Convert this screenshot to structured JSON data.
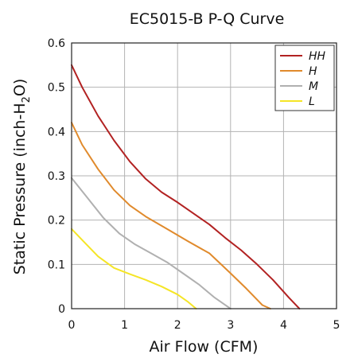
{
  "chart_data": {
    "type": "line",
    "title": "EC5015-B P-Q Curve",
    "xlabel": "Air Flow (CFM)",
    "ylabel": "Static Pressure (inch-H2O)",
    "ylabel_main": "Static Pressure (inch-H",
    "ylabel_sub": "2",
    "ylabel_end": "O)",
    "xlim": [
      0,
      5
    ],
    "ylim": [
      0,
      0.6
    ],
    "xticks": [
      0,
      1,
      2,
      3,
      4,
      5
    ],
    "yticks": [
      0,
      0.1,
      0.2,
      0.3,
      0.4,
      0.5,
      0.6
    ],
    "grid": true,
    "legend_position": "top-right",
    "series": [
      {
        "name": "HH",
        "color": "#b22222",
        "x": [
          0,
          0.2,
          0.5,
          0.8,
          1.1,
          1.4,
          1.7,
          2.0,
          2.3,
          2.6,
          2.9,
          3.2,
          3.5,
          3.8,
          4.1,
          4.3
        ],
        "y": [
          0.55,
          0.5,
          0.435,
          0.38,
          0.332,
          0.293,
          0.263,
          0.24,
          0.215,
          0.19,
          0.16,
          0.132,
          0.1,
          0.065,
          0.025,
          0.0
        ]
      },
      {
        "name": "H",
        "color": "#e08a2c",
        "x": [
          0,
          0.2,
          0.5,
          0.8,
          1.1,
          1.4,
          1.8,
          2.2,
          2.6,
          3.0,
          3.3,
          3.6,
          3.75
        ],
        "y": [
          0.42,
          0.37,
          0.315,
          0.268,
          0.233,
          0.208,
          0.18,
          0.152,
          0.125,
          0.08,
          0.045,
          0.008,
          0.0
        ]
      },
      {
        "name": "M",
        "color": "#b0b0b0",
        "x": [
          0,
          0.3,
          0.6,
          0.9,
          1.2,
          1.5,
          1.8,
          2.1,
          2.4,
          2.7,
          3.0
        ],
        "y": [
          0.295,
          0.25,
          0.205,
          0.17,
          0.145,
          0.125,
          0.105,
          0.08,
          0.055,
          0.025,
          0.0
        ]
      },
      {
        "name": "L",
        "color": "#f5e526",
        "x": [
          0,
          0.2,
          0.5,
          0.8,
          1.1,
          1.4,
          1.7,
          2.0,
          2.2,
          2.35
        ],
        "y": [
          0.18,
          0.155,
          0.118,
          0.092,
          0.078,
          0.065,
          0.05,
          0.032,
          0.015,
          0.0
        ]
      }
    ]
  }
}
